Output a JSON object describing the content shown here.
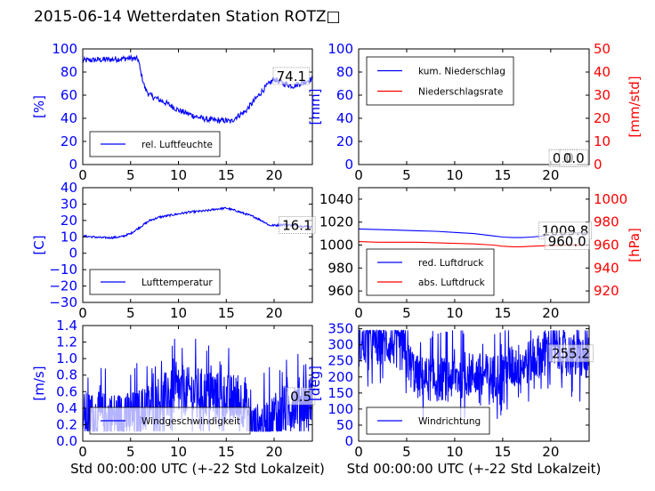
{
  "page_title": "2015-06-14 Wetterdaten Station ROTZ□",
  "colors": {
    "blue": "#0000ff",
    "red": "#ff0000",
    "black": "#000000"
  },
  "chart_data": [
    {
      "id": "humidity",
      "type": "line",
      "ylabel": "[%]",
      "ylabel_color": "#0000ff",
      "xlim": [
        0,
        24
      ],
      "ylim": [
        0,
        100
      ],
      "xticks": [
        "0",
        "5",
        "10",
        "15",
        "20"
      ],
      "xtick_values": [
        0,
        5,
        10,
        15,
        20
      ],
      "yticks": [
        "0",
        "20",
        "40",
        "60",
        "80",
        "100"
      ],
      "ytick_values": [
        0,
        20,
        40,
        60,
        80,
        100
      ],
      "ytick_color": "#0000ff",
      "legend": {
        "placement": "lower-left",
        "entries": [
          {
            "label": "rel. Luftfeuchte",
            "color": "#0000ff"
          }
        ]
      },
      "annotations": [
        {
          "text": "74.1",
          "x": 21.8,
          "y": 77
        }
      ],
      "series": [
        {
          "name": "rel. Luftfeuchte",
          "color": "#0000ff",
          "noise": 2.5,
          "x": [
            0,
            3,
            5,
            5.8,
            6,
            6.5,
            7,
            8,
            9,
            10,
            11,
            12,
            13,
            14,
            15,
            15.5,
            16,
            17,
            18,
            19,
            19.5,
            20,
            21,
            22,
            23,
            24
          ],
          "y": [
            90,
            91,
            92,
            91,
            82,
            66,
            60,
            56,
            52,
            47,
            44,
            41,
            39,
            38,
            38,
            37,
            41,
            46,
            56,
            66,
            70,
            74,
            70,
            68,
            71,
            74
          ]
        }
      ]
    },
    {
      "id": "precip",
      "type": "line",
      "ylabel": "[mm]",
      "ylabel_color": "#0000ff",
      "ylabel_right": "[mm/std]",
      "ylabel_right_color": "#ff0000",
      "xlim": [
        0,
        24
      ],
      "ylim": [
        0,
        100
      ],
      "ylim_right": [
        0,
        50
      ],
      "xticks": [
        "0",
        "5",
        "10",
        "15",
        "20"
      ],
      "xtick_values": [
        0,
        5,
        10,
        15,
        20
      ],
      "yticks": [
        "0",
        "20",
        "40",
        "60",
        "80",
        "100"
      ],
      "ytick_values": [
        0,
        20,
        40,
        60,
        80,
        100
      ],
      "ytick_color": "#0000ff",
      "yticks_right": [
        "0",
        "10",
        "20",
        "30",
        "40",
        "50"
      ],
      "ytick_right_values": [
        0,
        10,
        20,
        30,
        40,
        50
      ],
      "ytick_right_color": "#ff0000",
      "legend": {
        "placement": "upper-left",
        "entries": [
          {
            "label": "kum. Niederschlag",
            "color": "#0000ff"
          },
          {
            "label": "Niederschlagsrate",
            "color": "#ff0000"
          }
        ]
      },
      "annotations": [
        {
          "text": "0.0",
          "x": 21.3,
          "y": 6
        },
        {
          "text": "0.0",
          "x": 22.4,
          "y": 6
        }
      ],
      "series": [
        {
          "name": "kum. Niederschlag",
          "color": "#0000ff",
          "x": [
            0,
            24
          ],
          "y": [
            0,
            0
          ]
        },
        {
          "name": "Niederschlagsrate",
          "color": "#ff0000",
          "axis": "right",
          "x": [
            0,
            24
          ],
          "y": [
            0,
            0
          ]
        }
      ]
    },
    {
      "id": "temperature",
      "type": "line",
      "ylabel": "[C]",
      "ylabel_color": "#0000ff",
      "xlim": [
        0,
        24
      ],
      "ylim": [
        -30,
        40
      ],
      "xticks": [
        "0",
        "5",
        "10",
        "15",
        "20"
      ],
      "xtick_values": [
        0,
        5,
        10,
        15,
        20
      ],
      "yticks": [
        "−30",
        "−20",
        "−10",
        "0",
        "10",
        "20",
        "30",
        "40"
      ],
      "ytick_values": [
        -30,
        -20,
        -10,
        0,
        10,
        20,
        30,
        40
      ],
      "ytick_color": "#0000ff",
      "legend": {
        "placement": "lower-left",
        "entries": [
          {
            "label": "Lufttemperatur",
            "color": "#0000ff"
          }
        ]
      },
      "annotations": [
        {
          "text": "16.1",
          "x": 22.4,
          "y": 17.5
        }
      ],
      "series": [
        {
          "name": "Lufttemperatur",
          "color": "#0000ff",
          "noise": 0.6,
          "x": [
            0,
            1,
            2,
            3,
            4,
            5,
            5.5,
            6,
            6.5,
            7,
            8,
            9,
            10,
            11,
            12,
            13,
            14,
            15,
            16,
            17,
            18,
            19,
            19.5,
            20,
            21,
            22,
            23,
            24
          ],
          "y": [
            10.5,
            10,
            9.5,
            9.5,
            10,
            12,
            14,
            16,
            18,
            20,
            22,
            23,
            24,
            25,
            25.5,
            26,
            27,
            27.5,
            26,
            24,
            22,
            19,
            17,
            17,
            17.5,
            17,
            16.5,
            16
          ]
        }
      ]
    },
    {
      "id": "pressure",
      "type": "line",
      "ylabel_right": "[hPa]",
      "ylabel_right_color": "#ff0000",
      "xlim": [
        0,
        24
      ],
      "ylim": [
        950,
        1050
      ],
      "ylim_right": [
        910,
        1010
      ],
      "xticks": [
        "0",
        "5",
        "10",
        "15",
        "20"
      ],
      "xtick_values": [
        0,
        5,
        10,
        15,
        20
      ],
      "yticks": [
        "960",
        "980",
        "1000",
        "1020",
        "1040"
      ],
      "ytick_values": [
        960,
        980,
        1000,
        1020,
        1040
      ],
      "ytick_color": "#000000",
      "yticks_right": [
        "920",
        "940",
        "960",
        "980",
        "1000"
      ],
      "ytick_right_values": [
        920,
        940,
        960,
        980,
        1000
      ],
      "ytick_right_color": "#ff0000",
      "legend": {
        "placement": "lower-left",
        "entries": [
          {
            "label": "red. Luftdruck",
            "color": "#0000ff"
          },
          {
            "label": "abs. Luftdruck",
            "color": "#ff0000"
          }
        ]
      },
      "annotations": [
        {
          "text": "1009.8",
          "x": 21.5,
          "y": 1013
        },
        {
          "text": "960.0",
          "x": 21.7,
          "y": 1004
        }
      ],
      "series": [
        {
          "name": "red. Luftdruck",
          "color": "#0000ff",
          "x": [
            0,
            2,
            4,
            6,
            8,
            10,
            12,
            14,
            15,
            16,
            17,
            18,
            20,
            22,
            24
          ],
          "y": [
            1014,
            1013.5,
            1013,
            1012.5,
            1012,
            1011,
            1010,
            1008,
            1007,
            1006.5,
            1006.5,
            1007,
            1008.5,
            1009.5,
            1010
          ]
        },
        {
          "name": "abs. Luftdruck",
          "color": "#ff0000",
          "axis": "right",
          "x": [
            0,
            2,
            4,
            6,
            8,
            10,
            12,
            14,
            15,
            16,
            17,
            18,
            20,
            22,
            24
          ],
          "y": [
            963,
            962.5,
            962.5,
            962.5,
            962,
            961.5,
            961,
            960,
            959,
            958.5,
            958.5,
            959,
            959.5,
            960,
            960
          ]
        }
      ]
    },
    {
      "id": "wind_speed",
      "type": "line",
      "ylabel": "[m/s]",
      "ylabel_color": "#0000ff",
      "xlabel": "Std 00:00:00 UTC (+-22 Std Lokalzeit)",
      "xlim": [
        0,
        24
      ],
      "ylim": [
        0,
        1.4
      ],
      "xticks": [
        "0",
        "5",
        "10",
        "15",
        "20"
      ],
      "xtick_values": [
        0,
        5,
        10,
        15,
        20
      ],
      "yticks": [
        "0.0",
        "0.2",
        "0.4",
        "0.6",
        "0.8",
        "1.0",
        "1.2",
        "1.4"
      ],
      "ytick_values": [
        0,
        0.2,
        0.4,
        0.6,
        0.8,
        1.0,
        1.2,
        1.4
      ],
      "ytick_color": "#0000ff",
      "legend": {
        "placement": "lower-left",
        "entries": [
          {
            "label": "Windgeschwindigkeit",
            "color": "#0000ff"
          }
        ]
      },
      "annotations": [
        {
          "text": "0.5",
          "x": 22.8,
          "y": 0.55
        }
      ],
      "series": [
        {
          "name": "Windgeschwindigkeit",
          "color": "#0000ff",
          "noise": 0.3,
          "dense": true,
          "x": [
            0,
            3,
            5,
            6,
            8,
            10,
            12,
            14,
            16,
            17,
            17.5,
            18,
            19,
            20,
            21,
            22,
            23,
            24
          ],
          "y": [
            0.3,
            0.3,
            0.3,
            0.35,
            0.5,
            0.6,
            0.6,
            0.55,
            0.5,
            0.45,
            0.2,
            0.15,
            0.2,
            0.3,
            0.35,
            0.45,
            0.5,
            0.5
          ]
        }
      ]
    },
    {
      "id": "wind_dir",
      "type": "line",
      "ylabel": "[deg]",
      "ylabel_color": "#0000ff",
      "xlabel": "Std 00:00:00 UTC (+-22 Std Lokalzeit)",
      "xlim": [
        0,
        24
      ],
      "ylim": [
        0,
        360
      ],
      "xticks": [
        "0",
        "5",
        "10",
        "15",
        "20"
      ],
      "xtick_values": [
        0,
        5,
        10,
        15,
        20
      ],
      "yticks": [
        "0",
        "50",
        "100",
        "150",
        "200",
        "250",
        "300",
        "350"
      ],
      "ytick_values": [
        0,
        50,
        100,
        150,
        200,
        250,
        300,
        350
      ],
      "ytick_color": "#0000ff",
      "legend": {
        "placement": "lower-left",
        "entries": [
          {
            "label": "Windrichtung",
            "color": "#0000ff"
          }
        ]
      },
      "annotations": [
        {
          "text": "255.2",
          "x": 22.1,
          "y": 275
        }
      ],
      "series": [
        {
          "name": "Windrichtung",
          "color": "#0000ff",
          "noise": 70,
          "dense": true,
          "x": [
            0,
            2,
            4,
            5,
            6,
            8,
            10,
            12,
            14,
            15,
            16,
            17,
            18,
            19,
            20,
            21,
            22,
            23,
            24
          ],
          "y": [
            300,
            310,
            300,
            260,
            200,
            190,
            200,
            210,
            200,
            220,
            230,
            240,
            250,
            270,
            290,
            280,
            270,
            260,
            255
          ]
        }
      ]
    }
  ]
}
